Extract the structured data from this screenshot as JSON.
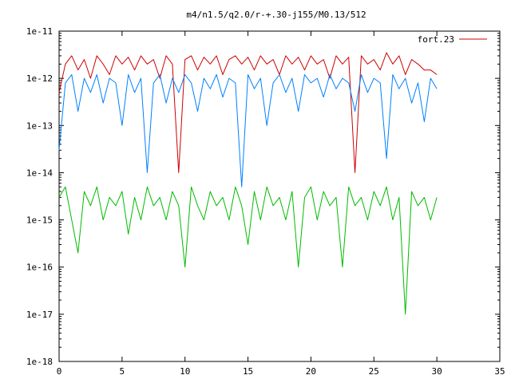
{
  "chart_data": {
    "type": "line",
    "title": "m4/n1.5/q2.0/r-+.30-j155/M0.13/512",
    "xlabel": "",
    "ylabel": "",
    "xlim": [
      0,
      35
    ],
    "ylim": [
      1e-18,
      1e-11
    ],
    "y_scale": "log",
    "grid": false,
    "legend_placement": "top-right",
    "x_ticks": [
      "0",
      "5",
      "10",
      "15",
      "20",
      "25",
      "30",
      "35"
    ],
    "y_ticks": [
      "1e-18",
      "1e-17",
      "1e-16",
      "1e-15",
      "1e-14",
      "1e-13",
      "1e-12",
      "1e-11"
    ],
    "x_tick_values": [
      0,
      5,
      10,
      15,
      20,
      25,
      30,
      35
    ],
    "y_tick_values": [
      1e-18,
      1e-17,
      1e-16,
      1e-15,
      1e-14,
      1e-13,
      1e-12,
      1e-11
    ],
    "series": [
      {
        "name": "fort.23",
        "color": "#cc0000",
        "x": [
          0,
          0.5,
          1,
          1.5,
          2,
          2.5,
          3,
          3.5,
          4,
          4.5,
          5,
          5.5,
          6,
          6.5,
          7,
          7.5,
          8,
          8.5,
          9,
          9.5,
          10,
          10.5,
          11,
          11.5,
          12,
          12.5,
          13,
          13.5,
          14,
          14.5,
          15,
          15.5,
          16,
          16.5,
          17,
          17.5,
          18,
          18.5,
          19,
          19.5,
          20,
          20.5,
          21,
          21.5,
          22,
          22.5,
          23,
          23.5,
          24,
          24.5,
          25,
          25.5,
          26,
          26.5,
          27,
          27.5,
          28,
          28.5,
          29,
          29.5,
          30
        ],
        "y": [
          5e-13,
          2e-12,
          3e-12,
          1.5e-12,
          2.5e-12,
          1e-12,
          3e-12,
          2e-12,
          1.2e-12,
          3e-12,
          2e-12,
          2.8e-12,
          1.5e-12,
          3e-12,
          2e-12,
          2.5e-12,
          1e-12,
          3e-12,
          2e-12,
          1e-14,
          2.5e-12,
          3e-12,
          1.5e-12,
          2.8e-12,
          2e-12,
          3e-12,
          1.2e-12,
          2.5e-12,
          3e-12,
          2e-12,
          2.8e-12,
          1.5e-12,
          3e-12,
          2e-12,
          2.5e-12,
          1.2e-12,
          3e-12,
          2e-12,
          2.8e-12,
          1.5e-12,
          3e-12,
          2e-12,
          2.5e-12,
          1e-12,
          3e-12,
          2e-12,
          2.8e-12,
          1e-14,
          3e-12,
          2e-12,
          2.5e-12,
          1.5e-12,
          3.5e-12,
          2e-12,
          3e-12,
          1.2e-12,
          2.5e-12,
          2e-12,
          1.5e-12,
          1.5e-12,
          1.2e-12
        ]
      },
      {
        "color": "#0080ff",
        "x": [
          0,
          0.5,
          1,
          1.5,
          2,
          2.5,
          3,
          3.5,
          4,
          4.5,
          5,
          5.5,
          6,
          6.5,
          7,
          7.5,
          8,
          8.5,
          9,
          9.5,
          10,
          10.5,
          11,
          11.5,
          12,
          12.5,
          13,
          13.5,
          14,
          14.5,
          15,
          15.5,
          16,
          16.5,
          17,
          17.5,
          18,
          18.5,
          19,
          19.5,
          20,
          20.5,
          21,
          21.5,
          22,
          22.5,
          23,
          23.5,
          24,
          24.5,
          25,
          25.5,
          26,
          26.5,
          27,
          27.5,
          28,
          28.5,
          29,
          29.5,
          30
        ],
        "y": [
          3e-14,
          8e-13,
          1.2e-12,
          2e-13,
          1e-12,
          5e-13,
          1.2e-12,
          3e-13,
          1e-12,
          8e-13,
          1e-13,
          1.2e-12,
          5e-13,
          1e-12,
          1e-14,
          8e-13,
          1.2e-12,
          3e-13,
          1e-12,
          5e-13,
          1.2e-12,
          8e-13,
          2e-13,
          1e-12,
          6e-13,
          1.2e-12,
          4e-13,
          1e-12,
          8e-13,
          5e-15,
          1.2e-12,
          6e-13,
          1e-12,
          1e-13,
          8e-13,
          1.2e-12,
          5e-13,
          1e-12,
          2e-13,
          1.2e-12,
          8e-13,
          1e-12,
          4e-13,
          1.2e-12,
          6e-13,
          1e-12,
          8e-13,
          2e-13,
          1.2e-12,
          5e-13,
          1e-12,
          8e-13,
          2e-14,
          1.2e-12,
          6e-13,
          1e-12,
          3e-13,
          8e-13,
          1.2e-13,
          1e-12,
          6e-13
        ]
      },
      {
        "color": "#00bb00",
        "x": [
          0,
          0.5,
          1,
          1.5,
          2,
          2.5,
          3,
          3.5,
          4,
          4.5,
          5,
          5.5,
          6,
          6.5,
          7,
          7.5,
          8,
          8.5,
          9,
          9.5,
          10,
          10.5,
          11,
          11.5,
          12,
          12.5,
          13,
          13.5,
          14,
          14.5,
          15,
          15.5,
          16,
          16.5,
          17,
          17.5,
          18,
          18.5,
          19,
          19.5,
          20,
          20.5,
          21,
          21.5,
          22,
          22.5,
          23,
          23.5,
          24,
          24.5,
          25,
          25.5,
          26,
          26.5,
          27,
          27.5,
          28,
          28.5,
          29,
          29.5,
          30
        ],
        "y": [
          3e-15,
          5e-15,
          1e-15,
          2e-16,
          4e-15,
          2e-15,
          5e-15,
          1e-15,
          3e-15,
          2e-15,
          4e-15,
          5e-16,
          3e-15,
          1e-15,
          5e-15,
          2e-15,
          3e-15,
          1e-15,
          4e-15,
          2e-15,
          1e-16,
          5e-15,
          2e-15,
          1e-15,
          4e-15,
          2e-15,
          3e-15,
          1e-15,
          5e-15,
          2e-15,
          3e-16,
          4e-15,
          1e-15,
          5e-15,
          2e-15,
          3e-15,
          1e-15,
          4e-15,
          1e-16,
          3e-15,
          5e-15,
          1e-15,
          4e-15,
          2e-15,
          3e-15,
          1e-16,
          5e-15,
          2e-15,
          3e-15,
          1e-15,
          4e-15,
          2e-15,
          5e-15,
          1e-15,
          3e-15,
          1e-17,
          4e-15,
          2e-15,
          3e-15,
          1e-15,
          3e-15
        ]
      }
    ]
  }
}
